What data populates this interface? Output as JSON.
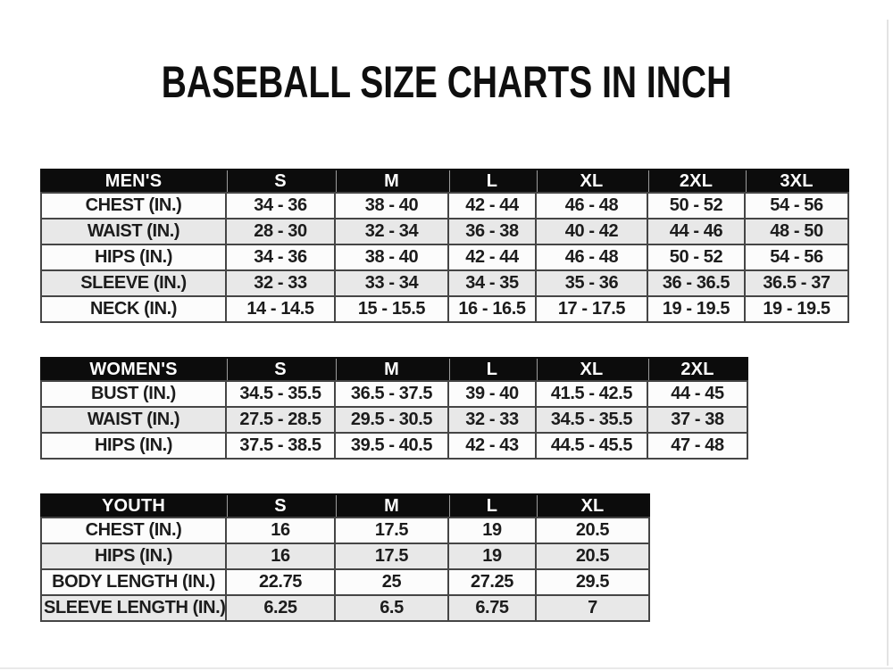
{
  "title": "BASEBALL SIZE CHARTS IN INCH",
  "tables": [
    {
      "id": "mens",
      "header": [
        "MEN'S",
        "S",
        "M",
        "L",
        "XL",
        "2XL",
        "3XL"
      ],
      "rows": [
        [
          "CHEST (IN.)",
          "34 - 36",
          "38 - 40",
          "42 - 44",
          "46 - 48",
          "50 - 52",
          "54 - 56"
        ],
        [
          "WAIST (IN.)",
          "28 - 30",
          "32 - 34",
          "36 - 38",
          "40 - 42",
          "44 - 46",
          "48 - 50"
        ],
        [
          "HIPS (IN.)",
          "34 - 36",
          "38 - 40",
          "42 - 44",
          "46 - 48",
          "50 - 52",
          "54 - 56"
        ],
        [
          "SLEEVE (IN.)",
          "32 - 33",
          "33 - 34",
          "34 - 35",
          "35 - 36",
          "36 - 36.5",
          "36.5 - 37"
        ],
        [
          "NECK (IN.)",
          "14 - 14.5",
          "15 - 15.5",
          "16 - 16.5",
          "17 - 17.5",
          "19 - 19.5",
          "19 - 19.5"
        ]
      ]
    },
    {
      "id": "womens",
      "header": [
        "WOMEN'S",
        "S",
        "M",
        "L",
        "XL",
        "2XL"
      ],
      "rows": [
        [
          "BUST (IN.)",
          "34.5 - 35.5",
          "36.5 - 37.5",
          "39 - 40",
          "41.5 - 42.5",
          "44 - 45"
        ],
        [
          "WAIST (IN.)",
          "27.5 - 28.5",
          "29.5 - 30.5",
          "32 - 33",
          "34.5 - 35.5",
          "37 - 38"
        ],
        [
          "HIPS (IN.)",
          "37.5 - 38.5",
          "39.5 - 40.5",
          "42 - 43",
          "44.5 - 45.5",
          "47 - 48"
        ]
      ]
    },
    {
      "id": "youth",
      "header": [
        "YOUTH",
        "S",
        "M",
        "L",
        "XL"
      ],
      "rows": [
        [
          "CHEST (IN.)",
          "16",
          "17.5",
          "19",
          "20.5"
        ],
        [
          "HIPS (IN.)",
          "16",
          "17.5",
          "19",
          "20.5"
        ],
        [
          "BODY LENGTH (IN.)",
          "22.75",
          "25",
          "27.25",
          "29.5"
        ],
        [
          "SLEEVE LENGTH (IN.)",
          "6.25",
          "6.5",
          "6.75",
          "7"
        ]
      ]
    }
  ],
  "colors": {
    "page_bg": "#ffffff",
    "header_bg": "#0c0c0c",
    "header_text": "#ffffff",
    "stripe_row_bg": "#e8e8e8",
    "plain_row_bg": "#fcfcfc",
    "grid_line": "#454545",
    "text": "#1c1c1c"
  }
}
